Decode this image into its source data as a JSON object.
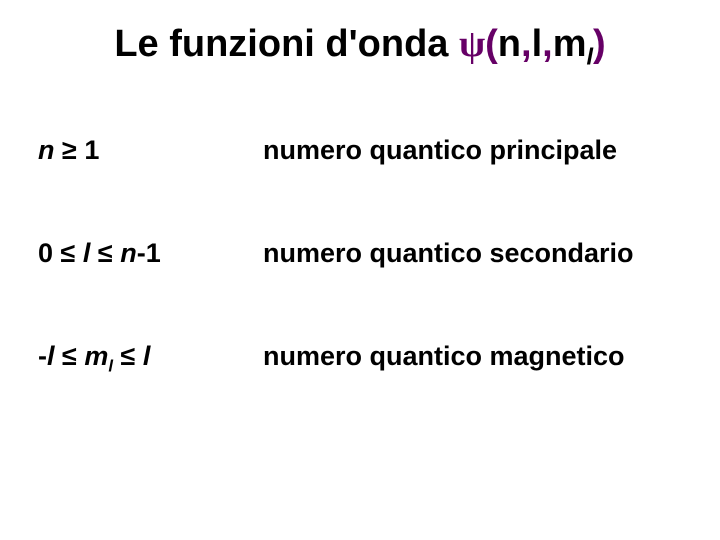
{
  "title": {
    "prefix": "Le funzioni d'onda ",
    "psi": "ψ",
    "open": "(",
    "n": "n",
    "sep1": ",",
    "l": "l",
    "sep2": ",",
    "m": "m",
    "msub": "l",
    "close": ")"
  },
  "rows": [
    {
      "var1": "n",
      "op1": " ≥ ",
      "tail": "1",
      "desc": "numero quantico principale"
    },
    {
      "lead": "0",
      "op1": " ≤ ",
      "var1": "l",
      "op2": " ≤ ",
      "var2": "n",
      "tail": "-1",
      "desc": "numero quantico secondario"
    },
    {
      "lead": "-",
      "var1": "l",
      "op1": " ≤ ",
      "var2": "m",
      "sub": "l",
      "op2": " ≤ ",
      "var3": "l",
      "desc": "numero quantico magnetico"
    }
  ],
  "colors": {
    "text": "#000000",
    "accent": "#660066",
    "background": "#ffffff"
  }
}
